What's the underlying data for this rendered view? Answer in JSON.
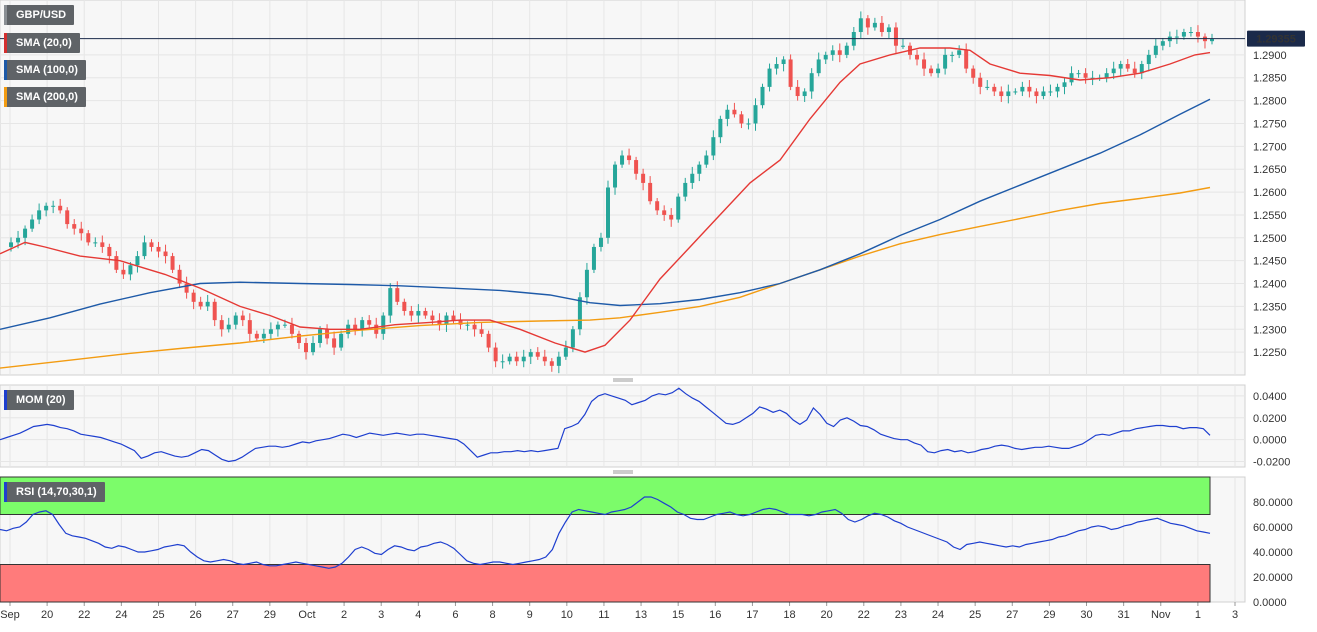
{
  "chart_data": [
    {
      "type": "candlestick",
      "panel": "price",
      "symbol": "GBP/USD",
      "last_price": "1.29355",
      "ylim": [
        1.22,
        1.302
      ],
      "y_ticks": [
        "1.2250",
        "1.2300",
        "1.2350",
        "1.2400",
        "1.2450",
        "1.2500",
        "1.2550",
        "1.2600",
        "1.2650",
        "1.2700",
        "1.2750",
        "1.2800",
        "1.2850",
        "1.2900"
      ],
      "x_labels": [
        "Sep",
        "20",
        "22",
        "24",
        "25",
        "26",
        "27",
        "29",
        "Oct",
        "2",
        "3",
        "4",
        "6",
        "8",
        "9",
        "10",
        "11",
        "13",
        "15",
        "16",
        "17",
        "18",
        "20",
        "22",
        "23",
        "24",
        "25",
        "27",
        "29",
        "30",
        "31",
        "Nov",
        "1",
        "3"
      ],
      "colors": {
        "up": "#26a69a",
        "down": "#ef5350",
        "sma20": "#e53935",
        "sma100": "#1e5aa8",
        "sma200": "#f39c12"
      },
      "indicators": [
        {
          "name": "SMA (20,0)",
          "color": "#d32f2f"
        },
        {
          "name": "SMA (100,0)",
          "color": "#1e5aa8"
        },
        {
          "name": "SMA (200,0)",
          "color": "#f39c12"
        }
      ],
      "close_path": [
        1.248,
        1.249,
        1.25,
        1.252,
        1.254,
        1.256,
        1.257,
        1.257,
        1.256,
        1.253,
        1.252,
        1.251,
        1.249,
        1.249,
        1.248,
        1.246,
        1.243,
        1.242,
        1.244,
        1.246,
        1.249,
        1.248,
        1.247,
        1.246,
        1.243,
        1.24,
        1.238,
        1.236,
        1.235,
        1.236,
        1.232,
        1.23,
        1.231,
        1.233,
        1.232,
        1.229,
        1.228,
        1.229,
        1.23,
        1.231,
        1.231,
        1.229,
        1.227,
        1.225,
        1.227,
        1.23,
        1.228,
        1.226,
        1.229,
        1.231,
        1.23,
        1.232,
        1.231,
        1.229,
        1.233,
        1.239,
        1.236,
        1.234,
        1.233,
        1.234,
        1.233,
        1.232,
        1.231,
        1.233,
        1.232,
        1.231,
        1.231,
        1.23,
        1.229,
        1.226,
        1.223,
        1.223,
        1.224,
        1.223,
        1.224,
        1.225,
        1.224,
        1.223,
        1.222,
        1.224,
        1.226,
        1.23,
        1.237,
        1.243,
        1.248,
        1.25,
        1.261,
        1.266,
        1.268,
        1.267,
        1.264,
        1.262,
        1.258,
        1.256,
        1.255,
        1.254,
        1.259,
        1.262,
        1.264,
        1.266,
        1.268,
        1.272,
        1.276,
        1.278,
        1.277,
        1.275,
        1.275,
        1.279,
        1.283,
        1.287,
        1.288,
        1.289,
        1.283,
        1.281,
        1.282,
        1.286,
        1.289,
        1.29,
        1.291,
        1.29,
        1.292,
        1.295,
        1.298,
        1.296,
        1.297,
        1.295,
        1.296,
        1.292,
        1.292,
        1.29,
        1.289,
        1.287,
        1.286,
        1.287,
        1.29,
        1.29,
        1.291,
        1.287,
        1.285,
        1.283,
        1.283,
        1.282,
        1.281,
        1.282,
        1.282,
        1.283,
        1.282,
        1.281,
        1.282,
        1.282,
        1.283,
        1.284,
        1.286,
        1.286,
        1.285,
        1.285,
        1.285,
        1.286,
        1.287,
        1.288,
        1.287,
        1.286,
        1.288,
        1.29,
        1.292,
        1.293,
        1.294,
        1.294,
        1.295,
        1.295,
        1.294,
        1.293,
        1.2935
      ],
      "sma20": [
        [
          0,
          1.2465
        ],
        [
          10,
          1.2475
        ],
        [
          25,
          1.249
        ],
        [
          45,
          1.248
        ],
        [
          80,
          1.246
        ],
        [
          120,
          1.245
        ],
        [
          165,
          1.242
        ],
        [
          200,
          1.239
        ],
        [
          240,
          1.235
        ],
        [
          270,
          1.233
        ],
        [
          300,
          1.2305
        ],
        [
          330,
          1.23
        ],
        [
          360,
          1.23
        ],
        [
          395,
          1.231
        ],
        [
          430,
          1.2315
        ],
        [
          460,
          1.232
        ],
        [
          490,
          1.232
        ],
        [
          520,
          1.23
        ],
        [
          555,
          1.227
        ],
        [
          585,
          1.225
        ],
        [
          605,
          1.2265
        ],
        [
          630,
          1.232
        ],
        [
          660,
          1.241
        ],
        [
          690,
          1.248
        ],
        [
          720,
          1.255
        ],
        [
          750,
          1.262
        ],
        [
          780,
          1.267
        ],
        [
          810,
          1.276
        ],
        [
          840,
          1.284
        ],
        [
          860,
          1.288
        ],
        [
          890,
          1.29
        ],
        [
          920,
          1.2915
        ],
        [
          950,
          1.2915
        ],
        [
          970,
          1.291
        ],
        [
          990,
          1.288
        ],
        [
          1020,
          1.286
        ],
        [
          1050,
          1.2855
        ],
        [
          1080,
          1.2845
        ],
        [
          1110,
          1.285
        ],
        [
          1140,
          1.286
        ],
        [
          1170,
          1.288
        ],
        [
          1195,
          1.29
        ],
        [
          1210,
          1.2905
        ]
      ],
      "sma100": [
        [
          0,
          1.23
        ],
        [
          50,
          1.2325
        ],
        [
          100,
          1.2355
        ],
        [
          150,
          1.238
        ],
        [
          200,
          1.24
        ],
        [
          240,
          1.2403
        ],
        [
          300,
          1.24
        ],
        [
          350,
          1.2398
        ],
        [
          400,
          1.2395
        ],
        [
          450,
          1.239
        ],
        [
          500,
          1.2385
        ],
        [
          550,
          1.2375
        ],
        [
          590,
          1.2358
        ],
        [
          620,
          1.2352
        ],
        [
          660,
          1.2356
        ],
        [
          700,
          1.2365
        ],
        [
          740,
          1.238
        ],
        [
          780,
          1.24
        ],
        [
          820,
          1.243
        ],
        [
          860,
          1.2465
        ],
        [
          900,
          1.2505
        ],
        [
          940,
          1.254
        ],
        [
          980,
          1.258
        ],
        [
          1020,
          1.2615
        ],
        [
          1060,
          1.265
        ],
        [
          1100,
          1.2685
        ],
        [
          1140,
          1.2725
        ],
        [
          1180,
          1.277
        ],
        [
          1210,
          1.2803
        ]
      ],
      "sma200": [
        [
          0,
          1.2215
        ],
        [
          60,
          1.223
        ],
        [
          120,
          1.2245
        ],
        [
          180,
          1.2258
        ],
        [
          240,
          1.227
        ],
        [
          300,
          1.2285
        ],
        [
          360,
          1.2298
        ],
        [
          420,
          1.2308
        ],
        [
          480,
          1.2315
        ],
        [
          540,
          1.2318
        ],
        [
          590,
          1.232
        ],
        [
          620,
          1.2325
        ],
        [
          660,
          1.2337
        ],
        [
          700,
          1.235
        ],
        [
          740,
          1.237
        ],
        [
          780,
          1.24
        ],
        [
          820,
          1.243
        ],
        [
          860,
          1.246
        ],
        [
          900,
          1.2487
        ],
        [
          940,
          1.2507
        ],
        [
          980,
          1.2525
        ],
        [
          1020,
          1.2542
        ],
        [
          1060,
          1.256
        ],
        [
          1100,
          1.2575
        ],
        [
          1140,
          1.2586
        ],
        [
          1180,
          1.2598
        ],
        [
          1210,
          1.261
        ]
      ]
    },
    {
      "type": "line",
      "panel": "momentum",
      "name": "MOM (20)",
      "color": "#1e3fcf",
      "ylim": [
        -0.025,
        0.05
      ],
      "y_ticks": [
        "0.0400",
        "0.0200",
        "0.0000",
        "-0.0200"
      ],
      "values": [
        0.0,
        0.002,
        0.004,
        0.006,
        0.009,
        0.012,
        0.013,
        0.014,
        0.013,
        0.011,
        0.01,
        0.008,
        0.005,
        0.004,
        0.003,
        0.002,
        0.0,
        -0.002,
        -0.004,
        -0.007,
        -0.01,
        -0.017,
        -0.015,
        -0.012,
        -0.011,
        -0.013,
        -0.015,
        -0.016,
        -0.015,
        -0.012,
        -0.009,
        -0.01,
        -0.014,
        -0.018,
        -0.02,
        -0.019,
        -0.016,
        -0.012,
        -0.008,
        -0.007,
        -0.006,
        -0.006,
        -0.007,
        -0.006,
        -0.004,
        -0.002,
        -0.003,
        -0.001,
        0.0,
        0.001,
        0.003,
        0.005,
        0.004,
        0.002,
        0.004,
        0.006,
        0.005,
        0.004,
        0.005,
        0.006,
        0.005,
        0.004,
        0.005,
        0.005,
        0.004,
        0.003,
        0.002,
        0.001,
        0.0,
        -0.004,
        -0.01,
        -0.016,
        -0.014,
        -0.012,
        -0.012,
        -0.011,
        -0.011,
        -0.01,
        -0.011,
        -0.01,
        -0.011,
        -0.01,
        -0.009,
        -0.008,
        0.01,
        0.012,
        0.015,
        0.023,
        0.035,
        0.04,
        0.042,
        0.04,
        0.038,
        0.036,
        0.032,
        0.034,
        0.036,
        0.04,
        0.042,
        0.041,
        0.043,
        0.047,
        0.042,
        0.038,
        0.035,
        0.03,
        0.025,
        0.02,
        0.015,
        0.014,
        0.016,
        0.02,
        0.024,
        0.03,
        0.028,
        0.025,
        0.027,
        0.024,
        0.018,
        0.014,
        0.018,
        0.029,
        0.023,
        0.015,
        0.012,
        0.018,
        0.02,
        0.017,
        0.013,
        0.012,
        0.009,
        0.005,
        0.003,
        0.001,
        0.0,
        0.0,
        -0.003,
        -0.005,
        -0.011,
        -0.012,
        -0.01,
        -0.009,
        -0.011,
        -0.01,
        -0.012,
        -0.011,
        -0.009,
        -0.008,
        -0.006,
        -0.005,
        -0.006,
        -0.008,
        -0.009,
        -0.008,
        -0.007,
        -0.007,
        -0.006,
        -0.007,
        -0.008,
        -0.008,
        -0.006,
        -0.004,
        0.0,
        0.004,
        0.005,
        0.004,
        0.006,
        0.008,
        0.008,
        0.01,
        0.011,
        0.012,
        0.013,
        0.013,
        0.012,
        0.012,
        0.01,
        0.011,
        0.011,
        0.01,
        0.004
      ]
    },
    {
      "type": "line",
      "panel": "rsi",
      "name": "RSI (14,70,30,1)",
      "color": "#1e3fcf",
      "ylim": [
        0,
        100
      ],
      "overbought": 70,
      "oversold": 30,
      "zone_colors": {
        "overbought": "#7cfc6a",
        "oversold": "#ff7b7b"
      },
      "y_ticks": [
        "80.0000",
        "60.0000",
        "40.0000",
        "20.0000",
        "0.0000"
      ],
      "values": [
        58,
        57,
        59,
        60,
        64,
        70,
        72,
        73,
        70,
        62,
        55,
        53,
        52,
        51,
        49,
        47,
        44,
        43,
        45,
        44,
        42,
        40,
        40,
        41,
        42,
        44,
        45,
        46,
        45,
        40,
        36,
        33,
        32,
        33,
        34,
        33,
        31,
        30,
        31,
        32,
        30,
        29,
        29,
        30,
        31,
        32,
        31,
        30,
        29,
        28,
        27,
        28,
        31,
        36,
        42,
        44,
        42,
        39,
        38,
        42,
        45,
        44,
        42,
        41,
        44,
        45,
        47,
        48,
        46,
        43,
        38,
        33,
        31,
        30,
        31,
        32,
        32,
        31,
        30,
        31,
        32,
        33,
        34,
        36,
        42,
        55,
        64,
        72,
        74,
        73,
        72,
        71,
        70,
        72,
        73,
        74,
        76,
        80,
        84,
        84,
        82,
        79,
        76,
        72,
        70,
        67,
        66,
        66,
        68,
        70,
        71,
        72,
        70,
        69,
        70,
        72,
        74,
        75,
        74,
        72,
        70,
        70,
        70,
        69,
        70,
        72,
        73,
        74,
        71,
        66,
        64,
        66,
        69,
        71,
        70,
        68,
        65,
        63,
        60,
        58,
        56,
        54,
        52,
        50,
        48,
        44,
        42,
        46,
        47,
        48,
        47,
        46,
        45,
        44,
        45,
        44,
        46,
        47,
        48,
        49,
        50,
        52,
        53,
        55,
        57,
        58,
        60,
        61,
        60,
        58,
        59,
        61,
        62,
        64,
        65,
        66,
        67,
        65,
        63,
        62,
        61,
        59,
        57,
        56,
        55
      ]
    }
  ]
}
